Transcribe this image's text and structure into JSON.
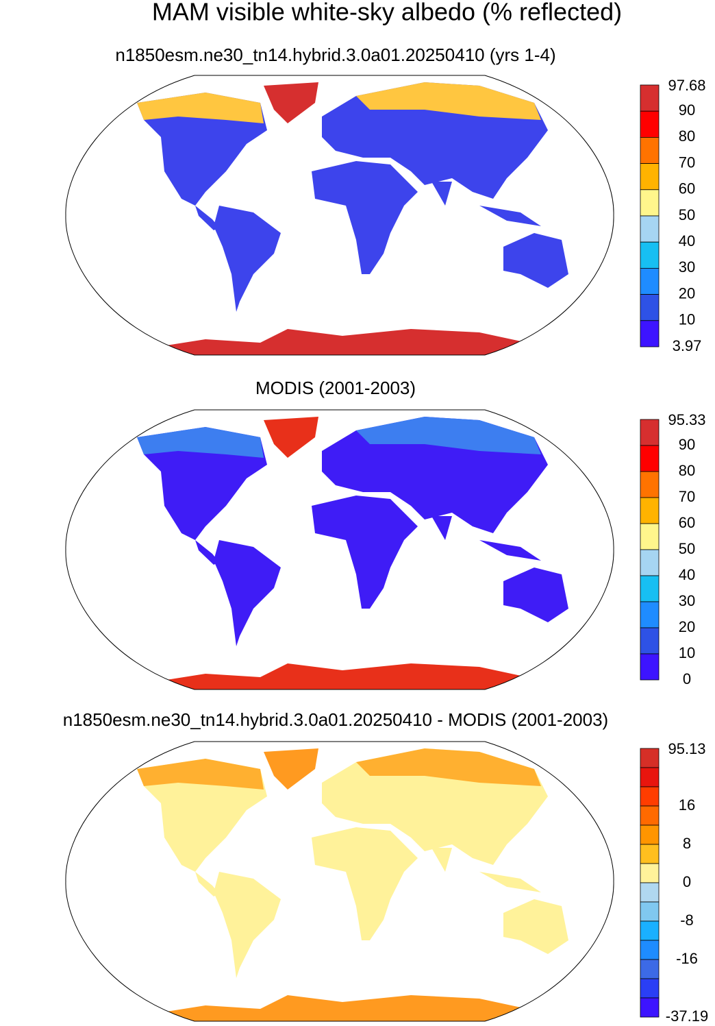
{
  "title": "MAM visible white-sky albedo (% reflected)",
  "panels": [
    {
      "title": "n1850esm.ne30_tn14.hybrid.3.0a01.20250410 (yrs 1-4)",
      "colorbar": {
        "colors": [
          "#d62f2f",
          "#ff0000",
          "#ff7300",
          "#ffb300",
          "#fff68c",
          "#a6d5f2",
          "#17bff2",
          "#1f8cff",
          "#2e52e6",
          "#3d14ff"
        ],
        "labels": [
          "97.68",
          "90",
          "80",
          "70",
          "60",
          "50",
          "40",
          "30",
          "20",
          "10",
          "3.97"
        ]
      }
    },
    {
      "title": "MODIS (2001-2003)",
      "colorbar": {
        "colors": [
          "#d62f2f",
          "#ff0000",
          "#ff7300",
          "#ffb300",
          "#fff68c",
          "#a6d5f2",
          "#17bff2",
          "#1f8cff",
          "#2e52e6",
          "#3d14ff"
        ],
        "labels": [
          "95.33",
          "90",
          "80",
          "70",
          "60",
          "50",
          "40",
          "30",
          "20",
          "10",
          "0"
        ]
      }
    },
    {
      "title": "n1850esm.ne30_tn14.hybrid.3.0a01.20250410 - MODIS (2001-2003)",
      "colorbar": {
        "colors": [
          "#d62f27",
          "#e8150e",
          "#ff3d00",
          "#ff6a00",
          "#ff9500",
          "#ffbf1f",
          "#fff29a",
          "#b0d8f0",
          "#80c8f0",
          "#1ab0ff",
          "#1e8cff",
          "#3c6ae6",
          "#2a3ff5",
          "#3d14ff"
        ],
        "labels": [
          "95.13",
          null,
          null,
          "16",
          null,
          "8",
          null,
          "0",
          null,
          "-8",
          null,
          "-16",
          null,
          null,
          "-37.19"
        ]
      }
    }
  ]
}
